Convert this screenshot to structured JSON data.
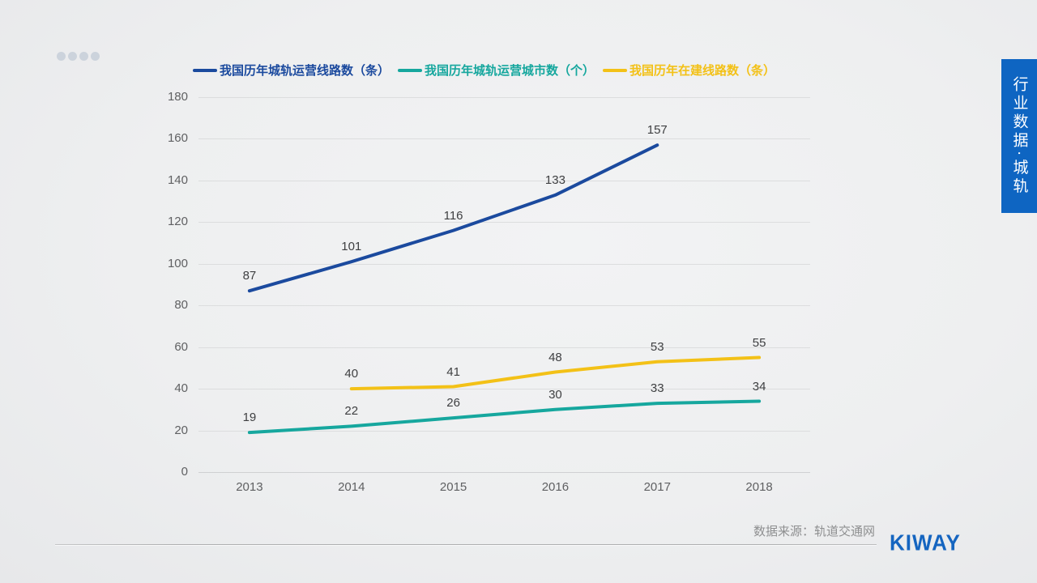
{
  "slide": {
    "pagination_dots_count": 4,
    "source_note": "数据来源：轨道交通网",
    "logo_text": "KIWAY",
    "sidebar_tag": "行业数据·城轨"
  },
  "colors": {
    "line_blue": "#1b4a9e",
    "line_teal": "#16a79e",
    "line_yellow": "#f3c117",
    "sidebar_bg": "#0e65c2",
    "logo_blue": "#1565c0",
    "dot_gray": "#ccd3dc"
  },
  "chart_data": {
    "type": "line",
    "categories": [
      "2013",
      "2014",
      "2015",
      "2016",
      "2017",
      "2018"
    ],
    "series": [
      {
        "name": "我国历年城轨运营线路数（条）",
        "color": "#1b4a9e",
        "values": [
          87,
          101,
          116,
          133,
          157,
          null
        ]
      },
      {
        "name": "我国历年城轨运营城市数（个）",
        "color": "#16a79e",
        "values": [
          19,
          22,
          26,
          30,
          33,
          34
        ]
      },
      {
        "name": "我国历年在建线路数（条）",
        "color": "#f3c117",
        "values": [
          null,
          40,
          41,
          48,
          53,
          55
        ]
      }
    ],
    "title": "",
    "xlabel": "",
    "ylabel": "",
    "ylim": [
      0,
      180
    ],
    "ytick_step": 20,
    "grid": true,
    "legend_position": "top",
    "data_labels": true
  }
}
